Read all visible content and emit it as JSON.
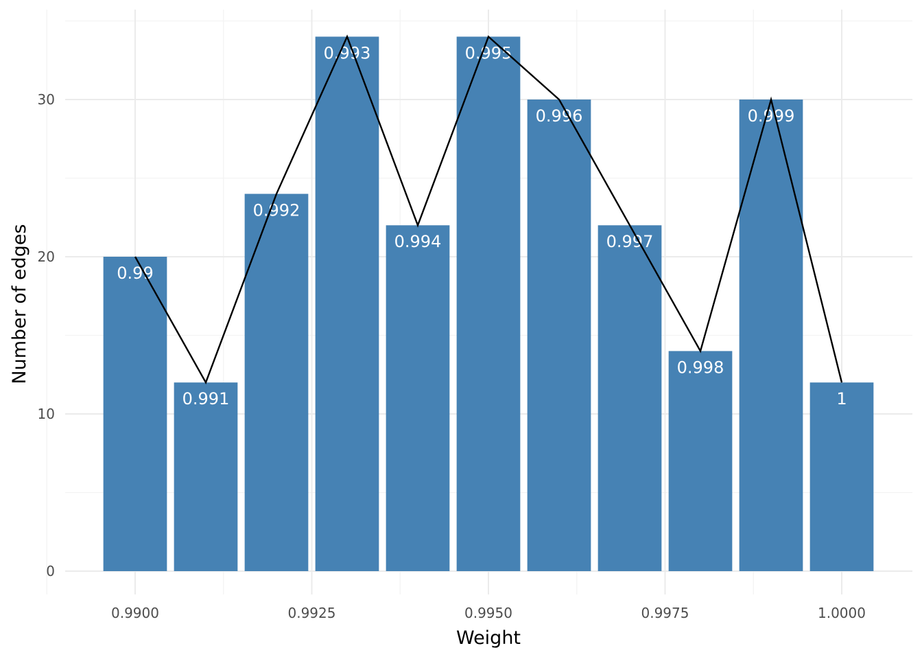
{
  "chart_data": {
    "type": "bar",
    "title": "",
    "xlabel": "Weight",
    "ylabel": "Number of edges",
    "x": [
      0.99,
      0.991,
      0.992,
      0.993,
      0.994,
      0.995,
      0.996,
      0.997,
      0.998,
      0.999,
      1.0
    ],
    "values": [
      20,
      12,
      24,
      34,
      22,
      34,
      30,
      22,
      14,
      30,
      12
    ],
    "bar_labels": [
      "0.99",
      "0.991",
      "0.992",
      "0.993",
      "0.994",
      "0.995",
      "0.996",
      "0.997",
      "0.998",
      "0.999",
      "1"
    ],
    "overlay": {
      "type": "line",
      "color": "#000000"
    },
    "bar_color": "#4682b4",
    "xlim": [
      0.9895,
      1.0005
    ],
    "ylim": [
      0,
      35
    ],
    "x_ticks": [
      0.99,
      0.9925,
      0.995,
      0.9975,
      1.0
    ],
    "x_tick_labels": [
      "0.9900",
      "0.9925",
      "0.9950",
      "0.9975",
      "1.0000"
    ],
    "y_ticks": [
      0,
      10,
      20,
      30
    ],
    "y_tick_labels": [
      "0",
      "10",
      "20",
      "30"
    ],
    "grid": true,
    "legend": "none"
  }
}
